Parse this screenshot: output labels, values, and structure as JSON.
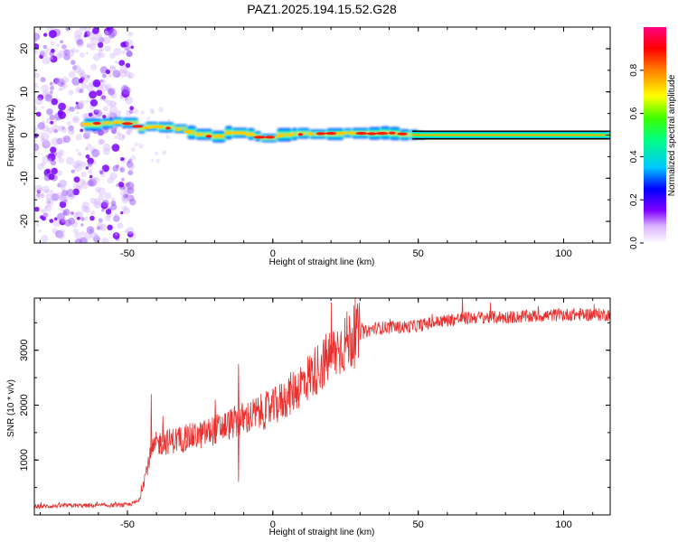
{
  "title": "PAZ1.2025.194.15.52.G28",
  "chart_data": [
    {
      "type": "heatmap",
      "xlabel": "Height of straight line (km)",
      "ylabel": "Frequency (Hz)",
      "xlim": [
        -82,
        116
      ],
      "ylim": [
        -25,
        25
      ],
      "xticks": [
        -50,
        0,
        50,
        100
      ],
      "yticks": [
        -20,
        -10,
        0,
        10,
        20
      ],
      "colorbar": {
        "label": "Normalized spectral amplitude",
        "range": [
          0,
          1
        ],
        "ticks": [
          "0.0",
          "0.2",
          "0.4",
          "0.6",
          "0.8"
        ],
        "colors": [
          "#ffffff",
          "#d8b0ff",
          "#8000ff",
          "#0000ff",
          "#00c8ff",
          "#00ff80",
          "#40ff00",
          "#ffff00",
          "#ff8000",
          "#ff0000",
          "#ff0080"
        ]
      },
      "ridge_frequency_hz": [
        {
          "x": -65,
          "f": 2.5
        },
        {
          "x": -55,
          "f": 3.0
        },
        {
          "x": -48,
          "f": 2.5
        },
        {
          "x": -45,
          "f": 1.5
        },
        {
          "x": -40,
          "f": 2.0
        },
        {
          "x": -35,
          "f": 1.5
        },
        {
          "x": -30,
          "f": 1.0
        },
        {
          "x": -25,
          "f": 0.0
        },
        {
          "x": -20,
          "f": -0.5
        },
        {
          "x": -15,
          "f": 0.5
        },
        {
          "x": -10,
          "f": 0.5
        },
        {
          "x": -5,
          "f": -0.5
        },
        {
          "x": 0,
          "f": -0.5
        },
        {
          "x": 5,
          "f": 0.0
        },
        {
          "x": 15,
          "f": 0.3
        },
        {
          "x": 25,
          "f": 0.5
        },
        {
          "x": 35,
          "f": 0.3
        },
        {
          "x": 40,
          "f": 0.5
        },
        {
          "x": 50,
          "f": 0.0
        },
        {
          "x": 116,
          "f": 0.0
        }
      ]
    },
    {
      "type": "line",
      "xlabel": "Height of straight line (km)",
      "ylabel": "SNR (10 * v/v)",
      "xlim": [
        -82,
        116
      ],
      "ylim": [
        0,
        3950
      ],
      "xticks": [
        -50,
        0,
        50,
        100
      ],
      "yticks": [
        1000,
        2000,
        3000
      ],
      "series": [
        {
          "color": "#e8302e",
          "points": [
            [
              -82,
              150
            ],
            [
              -70,
              170
            ],
            [
              -60,
              170
            ],
            [
              -50,
              180
            ],
            [
              -46,
              250
            ],
            [
              -44,
              700
            ],
            [
              -42,
              1100
            ],
            [
              -40,
              1300
            ],
            [
              -35,
              1350
            ],
            [
              -30,
              1400
            ],
            [
              -25,
              1450
            ],
            [
              -20,
              1550
            ],
            [
              -15,
              1650
            ],
            [
              -10,
              1750
            ],
            [
              -5,
              1850
            ],
            [
              0,
              1950
            ],
            [
              5,
              2150
            ],
            [
              10,
              2400
            ],
            [
              15,
              2650
            ],
            [
              20,
              2900
            ],
            [
              25,
              3150
            ],
            [
              30,
              3300
            ],
            [
              35,
              3400
            ],
            [
              40,
              3420
            ],
            [
              45,
              3420
            ],
            [
              50,
              3450
            ],
            [
              60,
              3550
            ],
            [
              70,
              3600
            ],
            [
              80,
              3600
            ],
            [
              90,
              3620
            ],
            [
              100,
              3650
            ],
            [
              110,
              3650
            ],
            [
              116,
              3650
            ]
          ],
          "spikes": [
            [
              -42,
              2200
            ],
            [
              -38,
              1800
            ],
            [
              -30,
              1650
            ],
            [
              -20,
              2100
            ],
            [
              -12,
              2750
            ],
            [
              -12,
              600
            ],
            [
              65,
              3950
            ]
          ]
        }
      ]
    }
  ]
}
